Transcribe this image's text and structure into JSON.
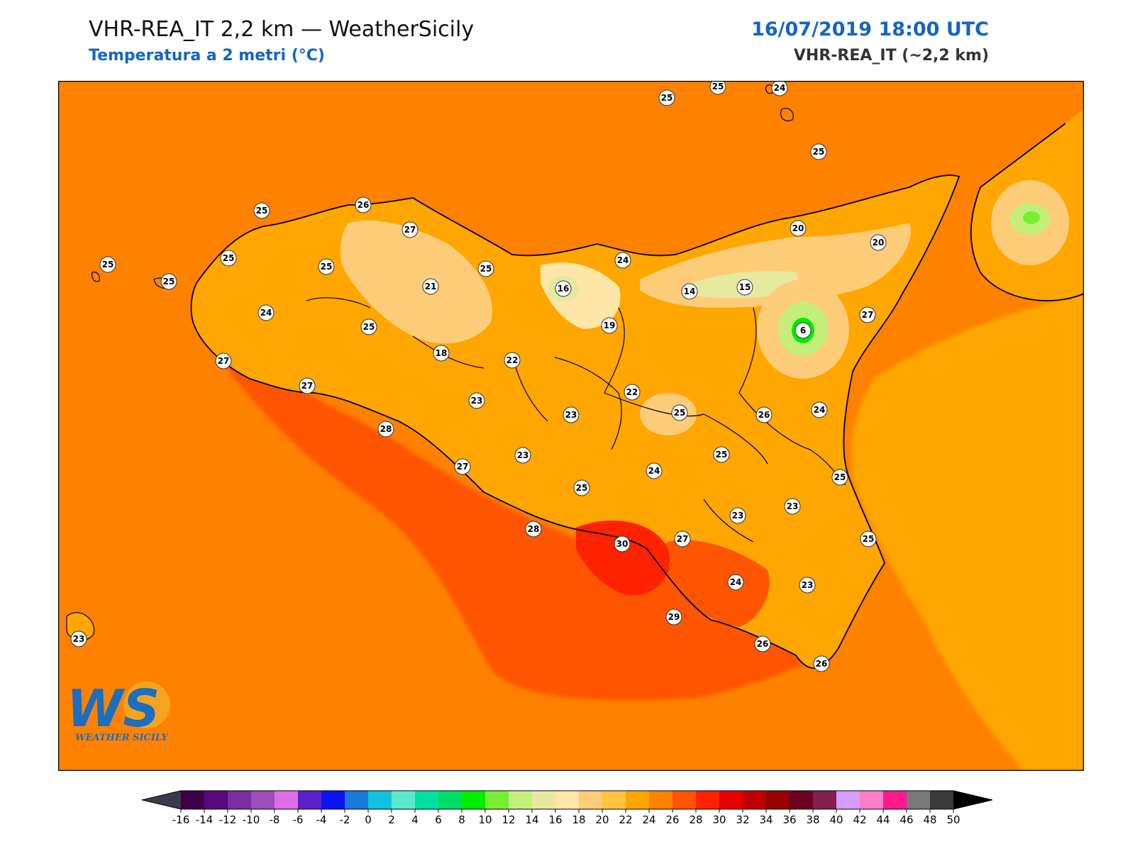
{
  "header": {
    "title": "VHR-REA_IT 2,2 km — WeatherSicily",
    "subtitle": "Temperatura a 2 metri (°C)",
    "datetime": "16/07/2019 18:00 UTC",
    "model": "VHR-REA_IT (~2,2 km)"
  },
  "logo": {
    "letters": "WS",
    "text": "WEATHER SICILY"
  },
  "colorbar": {
    "ticks": [
      "-16",
      "-14",
      "-12",
      "-10",
      "-8",
      "-6",
      "-4",
      "-2",
      "0",
      "2",
      "4",
      "6",
      "8",
      "10",
      "12",
      "14",
      "16",
      "18",
      "20",
      "22",
      "24",
      "26",
      "28",
      "30",
      "32",
      "34",
      "36",
      "38",
      "40",
      "42",
      "44",
      "46",
      "48",
      "50"
    ],
    "colors": [
      "#3b0046",
      "#5a0a7a",
      "#7b2e9e",
      "#9e4db8",
      "#dd6ee8",
      "#5a22c8",
      "#0a14f0",
      "#1a78d8",
      "#10c4e0",
      "#5ce8cc",
      "#00e0a0",
      "#00dd66",
      "#00ee00",
      "#77ee33",
      "#c4ee7a",
      "#e6e8a0",
      "#fee5a8",
      "#fdcc78",
      "#fec341",
      "#ffa600",
      "#ff8100",
      "#ff5500",
      "#ff2200",
      "#e60000",
      "#c00000",
      "#960000",
      "#700020",
      "#822050",
      "#d79dff",
      "#ff7ec8",
      "#ff1a8c",
      "#7a7a7a",
      "#3a3a3a"
    ]
  },
  "stations": [
    {
      "label": "25"
    },
    {
      "label": "25"
    },
    {
      "label": "24"
    },
    {
      "label": "25"
    },
    {
      "label": "25"
    },
    {
      "label": "26"
    },
    {
      "label": "27"
    },
    {
      "label": "25"
    },
    {
      "label": "25"
    },
    {
      "label": "25"
    },
    {
      "label": "25"
    },
    {
      "label": "20"
    },
    {
      "label": "20"
    },
    {
      "label": "24"
    },
    {
      "label": "21"
    },
    {
      "label": "25"
    },
    {
      "label": "16"
    },
    {
      "label": "14"
    },
    {
      "label": "15"
    },
    {
      "label": "24"
    },
    {
      "label": "19"
    },
    {
      "label": "27"
    },
    {
      "label": "6"
    },
    {
      "label": "25"
    },
    {
      "label": "18"
    },
    {
      "label": "22"
    },
    {
      "label": "27"
    },
    {
      "label": "27"
    },
    {
      "label": "22"
    },
    {
      "label": "23"
    },
    {
      "label": "23"
    },
    {
      "label": "25"
    },
    {
      "label": "26"
    },
    {
      "label": "24"
    },
    {
      "label": "28"
    },
    {
      "label": "25"
    },
    {
      "label": "23"
    },
    {
      "label": "27"
    },
    {
      "label": "24"
    },
    {
      "label": "25"
    },
    {
      "label": "25"
    },
    {
      "label": "23"
    },
    {
      "label": "23"
    },
    {
      "label": "28"
    },
    {
      "label": "30"
    },
    {
      "label": "27"
    },
    {
      "label": "25"
    },
    {
      "label": "24"
    },
    {
      "label": "23"
    },
    {
      "label": "29"
    },
    {
      "label": "26"
    },
    {
      "label": "26"
    },
    {
      "label": "23"
    }
  ]
}
